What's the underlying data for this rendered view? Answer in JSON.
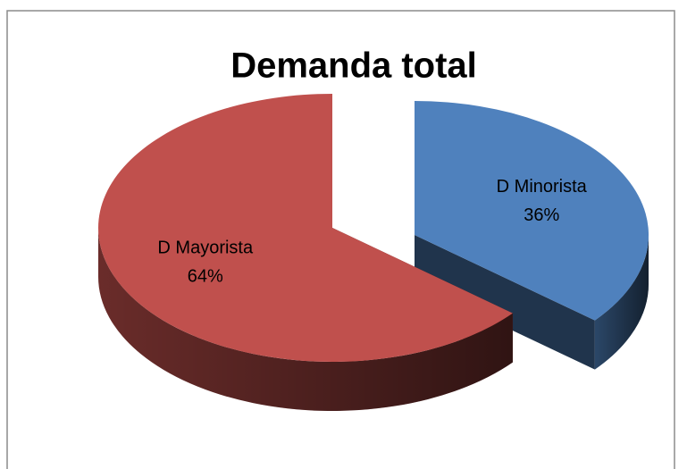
{
  "chart_data": {
    "type": "pie",
    "title": "Demanda total",
    "categories": [
      "D Minorista",
      "D Mayorista"
    ],
    "values": [
      36,
      64
    ],
    "value_labels": [
      "36%",
      "64%"
    ],
    "colors": [
      "#4f81bd",
      "#c0504d"
    ]
  }
}
